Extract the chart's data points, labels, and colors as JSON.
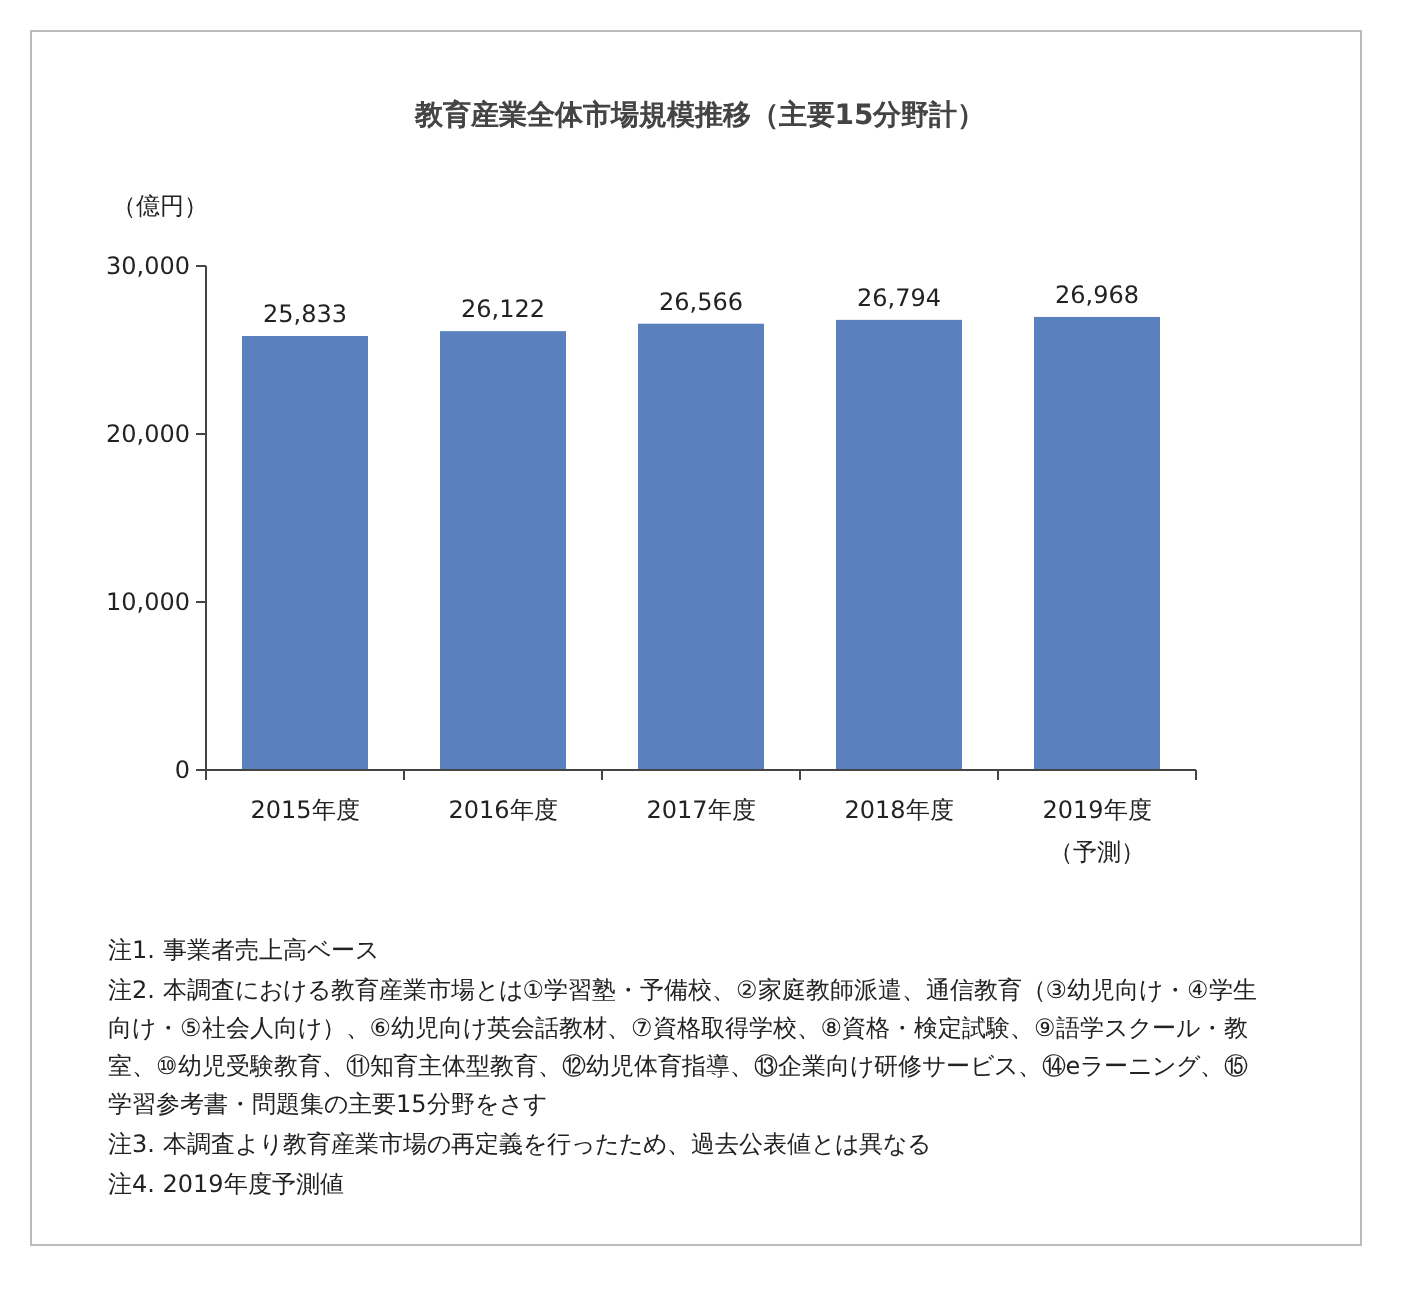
{
  "chart_data": {
    "type": "bar",
    "title": "教育産業全体市場規模推移（主要15分野計）",
    "ylabel": "（億円）",
    "categories": [
      "2015年度",
      "2016年度",
      "2017年度",
      "2018年度",
      "2019年度（予測）"
    ],
    "values": [
      25833,
      26122,
      26566,
      26794,
      26968
    ],
    "color": "#5a80bd",
    "ylim": [
      0,
      30000
    ],
    "yticks": [
      {
        "value": 0,
        "label": "0"
      },
      {
        "value": 10000,
        "label": "10,000"
      },
      {
        "value": 20000,
        "label": "20,000"
      },
      {
        "value": 30000,
        "label": "30,000"
      }
    ],
    "value_labels": [
      "25,833",
      "26,122",
      "26,566",
      "26,794",
      "26,968"
    ],
    "grid": false,
    "annotations": [
      "注1. 事業者売上高ベース",
      "注2. 本調査における教育産業市場とは①学習塾・予備校、②家庭教師派遣、通信教育（③幼児向け・④学生向け・⑤社会人向け）、⑥幼児向け英会話教材、⑦資格取得学校、⑧資格・検定試験、⑨語学スクール・教室、⑩幼児受験教育、⑪知育主体型教育、⑫幼児体育指導、⑬企業向け研修サービス、⑭eラーニング、⑮学習参考書・問題集の主要15分野をさす",
      "注3. 本調査より教育産業市場の再定義を行ったため、過去公表値とは異なる",
      "注4. 2019年度予測値"
    ]
  }
}
